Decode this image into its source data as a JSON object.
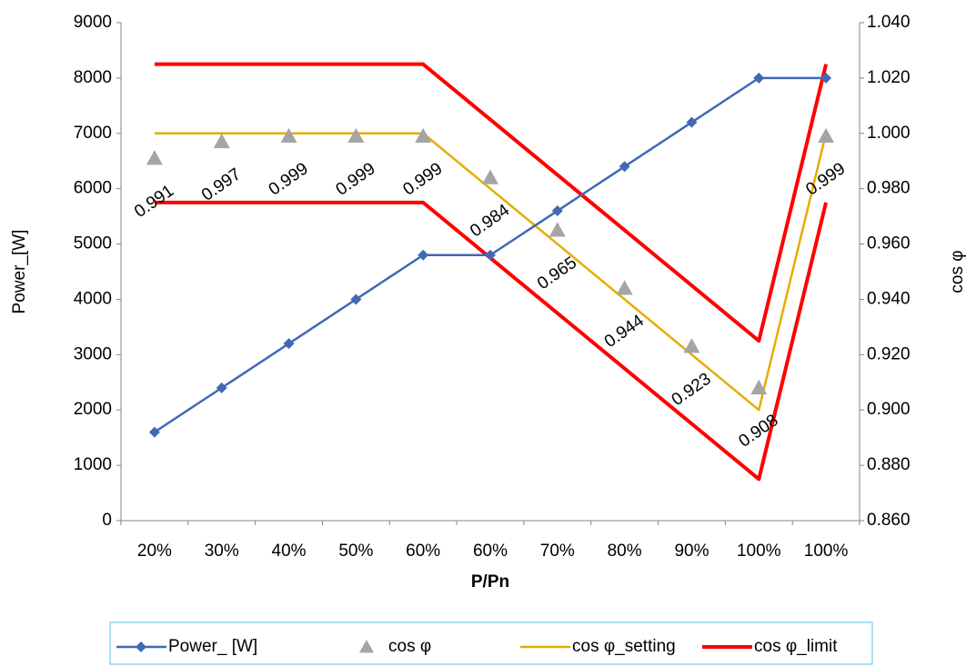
{
  "chart_data": {
    "type": "line",
    "x_label": "P/Pn",
    "y_label": "Power_[W]",
    "y2_label": "cos φ",
    "categories": [
      "20%",
      "30%",
      "40%",
      "50%",
      "60%",
      "60%",
      "70%",
      "80%",
      "90%",
      "100%",
      "100%"
    ],
    "ylim": [
      0,
      9000
    ],
    "yticks": [
      0,
      1000,
      2000,
      3000,
      4000,
      5000,
      6000,
      7000,
      8000,
      9000
    ],
    "y2lim": [
      0.86,
      1.04
    ],
    "y2ticks": [
      {
        "value": 0.86,
        "label": "0.860"
      },
      {
        "value": 0.88,
        "label": "0.880"
      },
      {
        "value": 0.9,
        "label": "0.900"
      },
      {
        "value": 0.92,
        "label": "0.920"
      },
      {
        "value": 0.94,
        "label": "0.940"
      },
      {
        "value": 0.96,
        "label": "0.960"
      },
      {
        "value": 0.98,
        "label": "0.980"
      },
      {
        "value": 1.0,
        "label": "1.000"
      },
      {
        "value": 1.02,
        "label": "1.020"
      },
      {
        "value": 1.04,
        "label": "1.040"
      }
    ],
    "series": [
      {
        "name": "Power_ [W]",
        "color": "#4169b4",
        "marker": "diamond",
        "values": [
          1600,
          2400,
          3200,
          4000,
          4800,
          4800,
          5600,
          6400,
          7200,
          8000,
          8000
        ]
      },
      {
        "name": "cos φ",
        "color": "#a5a5a5",
        "marker": "triangle",
        "axis": "y2",
        "data_labels": true,
        "values": [
          0.991,
          0.997,
          0.999,
          0.999,
          0.999,
          0.984,
          0.965,
          0.944,
          0.923,
          0.908,
          0.999
        ]
      },
      {
        "name": "cos φ_setting",
        "color": "#e6ac00",
        "axis": "y2",
        "values": [
          1.0,
          1.0,
          1.0,
          1.0,
          1.0,
          0.98,
          0.96,
          0.94,
          0.92,
          0.9,
          1.0
        ]
      },
      {
        "name": "cos φ_limit",
        "color": "#ff0000",
        "axis": "y2",
        "values": [
          1.025,
          1.025,
          1.025,
          1.025,
          1.025,
          1.005,
          0.985,
          0.965,
          0.945,
          0.925,
          1.025
        ],
        "lower_values": [
          0.975,
          0.975,
          0.975,
          0.975,
          0.975,
          0.955,
          0.935,
          0.915,
          0.895,
          0.875,
          0.975
        ]
      }
    ]
  }
}
